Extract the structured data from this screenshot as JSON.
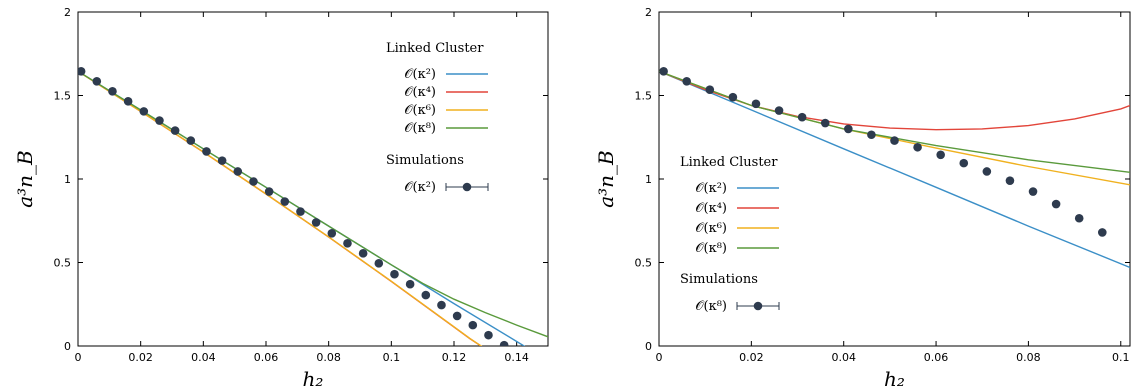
{
  "chart_data": [
    {
      "type": "line",
      "xlabel": "h₂",
      "ylabel": "a³n_B",
      "xlim": [
        0,
        0.15
      ],
      "ylim": [
        0,
        2
      ],
      "xticks": [
        "0",
        "0.02",
        "0.04",
        "0.06",
        "0.08",
        "0.1",
        "0.12",
        "0.14"
      ],
      "yticks": [
        "0",
        "0.5",
        "1",
        "1.5",
        "2"
      ],
      "legend": {
        "placement": "top-right",
        "lc_title": "Linked Cluster",
        "sim_title": "Simulations",
        "sim_label": "𝒪(κ²)"
      },
      "series": [
        {
          "name": "𝒪(κ²)",
          "color": "#3b8fc7",
          "x": [
            0,
            0.02,
            0.04,
            0.06,
            0.08,
            0.1,
            0.12,
            0.14,
            0.145
          ],
          "y": [
            1.645,
            1.413,
            1.181,
            0.95,
            0.718,
            0.486,
            0.254,
            0.027,
            -0.03
          ]
        },
        {
          "name": "𝒪(κ⁴)",
          "color": "#e2453a",
          "x": [
            0,
            0.02,
            0.04,
            0.06,
            0.08,
            0.1,
            0.12,
            0.125,
            0.131
          ],
          "y": [
            1.645,
            1.405,
            1.161,
            0.91,
            0.652,
            0.387,
            0.114,
            0.045,
            -0.03
          ]
        },
        {
          "name": "𝒪(κ⁶)",
          "color": "#f0b11f",
          "x": [
            0,
            0.02,
            0.04,
            0.06,
            0.08,
            0.1,
            0.12,
            0.125,
            0.131
          ],
          "y": [
            1.645,
            1.405,
            1.162,
            0.91,
            0.653,
            0.388,
            0.115,
            0.046,
            -0.03
          ]
        },
        {
          "name": "𝒪(κ⁸)",
          "color": "#5a9a3c",
          "x": [
            0,
            0.02,
            0.04,
            0.06,
            0.08,
            0.1,
            0.11,
            0.12,
            0.13,
            0.14,
            0.15
          ],
          "y": [
            1.645,
            1.413,
            1.181,
            0.95,
            0.718,
            0.486,
            0.375,
            0.28,
            0.2,
            0.125,
            0.055
          ]
        }
      ],
      "simulations": {
        "name": "𝒪(κ²)",
        "color": "#2e3b4e",
        "x": [
          0.001,
          0.006,
          0.011,
          0.016,
          0.021,
          0.026,
          0.031,
          0.036,
          0.041,
          0.046,
          0.051,
          0.056,
          0.061,
          0.066,
          0.071,
          0.076,
          0.081,
          0.086,
          0.091,
          0.096,
          0.101,
          0.106,
          0.111,
          0.116,
          0.121,
          0.126,
          0.131,
          0.136
        ],
        "y": [
          1.645,
          1.585,
          1.525,
          1.465,
          1.405,
          1.35,
          1.29,
          1.23,
          1.165,
          1.11,
          1.045,
          0.985,
          0.925,
          0.865,
          0.805,
          0.74,
          0.675,
          0.615,
          0.555,
          0.495,
          0.43,
          0.37,
          0.305,
          0.245,
          0.18,
          0.125,
          0.065,
          0.005
        ]
      }
    },
    {
      "type": "line",
      "xlabel": "h₂",
      "ylabel": "a³n_B",
      "xlim": [
        0,
        0.102
      ],
      "ylim": [
        0,
        2
      ],
      "xticks": [
        "0",
        "0.02",
        "0.04",
        "0.06",
        "0.08",
        "0.1"
      ],
      "yticks": [
        "0",
        "0.5",
        "1",
        "1.5",
        "2"
      ],
      "legend": {
        "placement": "center-left",
        "lc_title": "Linked Cluster",
        "sim_title": "Simulations",
        "sim_label": "𝒪(κ⁸)"
      },
      "series": [
        {
          "name": "𝒪(κ²)",
          "color": "#3b8fc7",
          "x": [
            0,
            0.02,
            0.04,
            0.06,
            0.08,
            0.102
          ],
          "y": [
            1.645,
            1.413,
            1.181,
            0.95,
            0.718,
            0.47
          ]
        },
        {
          "name": "𝒪(κ⁴)",
          "color": "#e2453a",
          "x": [
            0,
            0.01,
            0.02,
            0.03,
            0.04,
            0.05,
            0.06,
            0.07,
            0.08,
            0.09,
            0.1,
            0.102
          ],
          "y": [
            1.645,
            1.535,
            1.44,
            1.375,
            1.33,
            1.305,
            1.295,
            1.3,
            1.32,
            1.36,
            1.42,
            1.44
          ]
        },
        {
          "name": "𝒪(κ⁶)",
          "color": "#f0b11f",
          "x": [
            0,
            0.02,
            0.04,
            0.06,
            0.08,
            0.102
          ],
          "y": [
            1.645,
            1.44,
            1.3,
            1.185,
            1.075,
            0.965
          ]
        },
        {
          "name": "𝒪(κ⁸)",
          "color": "#5a9a3c",
          "x": [
            0,
            0.02,
            0.04,
            0.06,
            0.08,
            0.102
          ],
          "y": [
            1.645,
            1.44,
            1.3,
            1.2,
            1.115,
            1.04
          ]
        }
      ],
      "simulations": {
        "name": "𝒪(κ⁸)",
        "color": "#2e3b4e",
        "x": [
          0.001,
          0.006,
          0.011,
          0.016,
          0.021,
          0.026,
          0.031,
          0.036,
          0.041,
          0.046,
          0.051,
          0.056,
          0.061,
          0.066,
          0.071,
          0.076,
          0.081,
          0.086,
          0.091,
          0.096
        ],
        "y": [
          1.645,
          1.585,
          1.535,
          1.49,
          1.45,
          1.41,
          1.37,
          1.335,
          1.3,
          1.265,
          1.23,
          1.19,
          1.145,
          1.095,
          1.045,
          0.99,
          0.925,
          0.85,
          0.765,
          0.68
        ]
      }
    }
  ]
}
